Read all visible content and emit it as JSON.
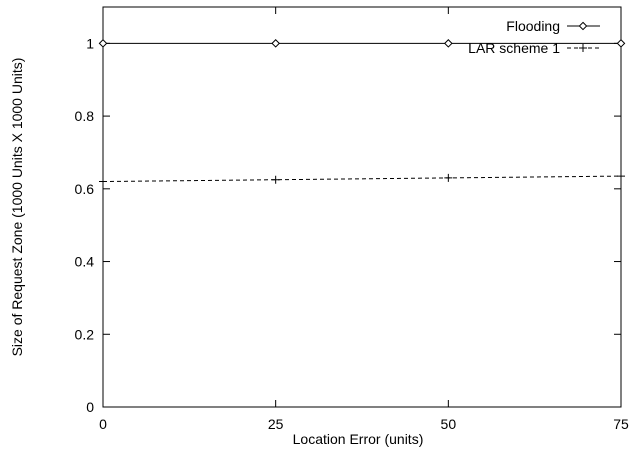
{
  "chart_data": {
    "type": "line",
    "xlabel": "Location Error (units)",
    "ylabel": "Size of Request Zone (1000 Units X 1000 Units)",
    "xlim": [
      0,
      75
    ],
    "ylim": [
      0,
      1.1
    ],
    "x_ticks": [
      0,
      25,
      50,
      75
    ],
    "x_tick_labels": [
      "0",
      "25",
      "50",
      "75"
    ],
    "y_ticks": [
      0,
      0.2,
      0.4,
      0.6,
      0.8,
      1
    ],
    "y_tick_labels": [
      "0",
      "0.2",
      "0.4",
      "0.6",
      "0.8",
      "1"
    ],
    "grid": false,
    "legend_position": "top-right",
    "series": [
      {
        "name": "Flooding",
        "x": [
          0,
          25,
          50,
          75
        ],
        "y": [
          1.0,
          1.0,
          1.0,
          1.0
        ],
        "marker": "diamond",
        "line_style": "solid",
        "color": "#000000"
      },
      {
        "name": "LAR scheme 1",
        "x": [
          0,
          25,
          50,
          75
        ],
        "y": [
          0.62,
          0.625,
          0.63,
          0.635
        ],
        "marker": "plus",
        "line_style": "dashed",
        "color": "#000000"
      }
    ]
  }
}
